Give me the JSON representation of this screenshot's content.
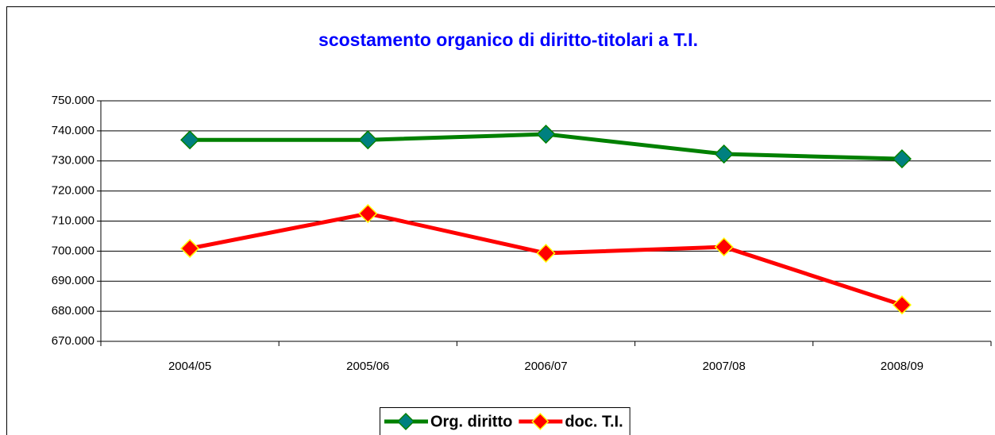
{
  "chart_data": {
    "type": "line",
    "title": "scostamento organico di diritto-titolari a T.I.",
    "categories": [
      "2004/05",
      "2005/06",
      "2006/07",
      "2007/08",
      "2008/09"
    ],
    "series": [
      {
        "name": "Org. diritto",
        "color": "#008000",
        "values": [
          737000,
          737000,
          738900,
          732300,
          730700
        ]
      },
      {
        "name": "doc. T.I.",
        "color": "#ff0000",
        "values": [
          700900,
          712500,
          699300,
          701400,
          682100
        ]
      }
    ],
    "ylim": [
      670000,
      750000
    ],
    "yticks": [
      {
        "value": 670000,
        "label": "670.000"
      },
      {
        "value": 680000,
        "label": "680.000"
      },
      {
        "value": 690000,
        "label": "690.000"
      },
      {
        "value": 700000,
        "label": "700.000"
      },
      {
        "value": 710000,
        "label": "710.000"
      },
      {
        "value": 720000,
        "label": "720.000"
      },
      {
        "value": 730000,
        "label": "730.000"
      },
      {
        "value": 740000,
        "label": "740.000"
      },
      {
        "value": 750000,
        "label": "750.000"
      }
    ],
    "grid": true,
    "legend": "bottom"
  }
}
